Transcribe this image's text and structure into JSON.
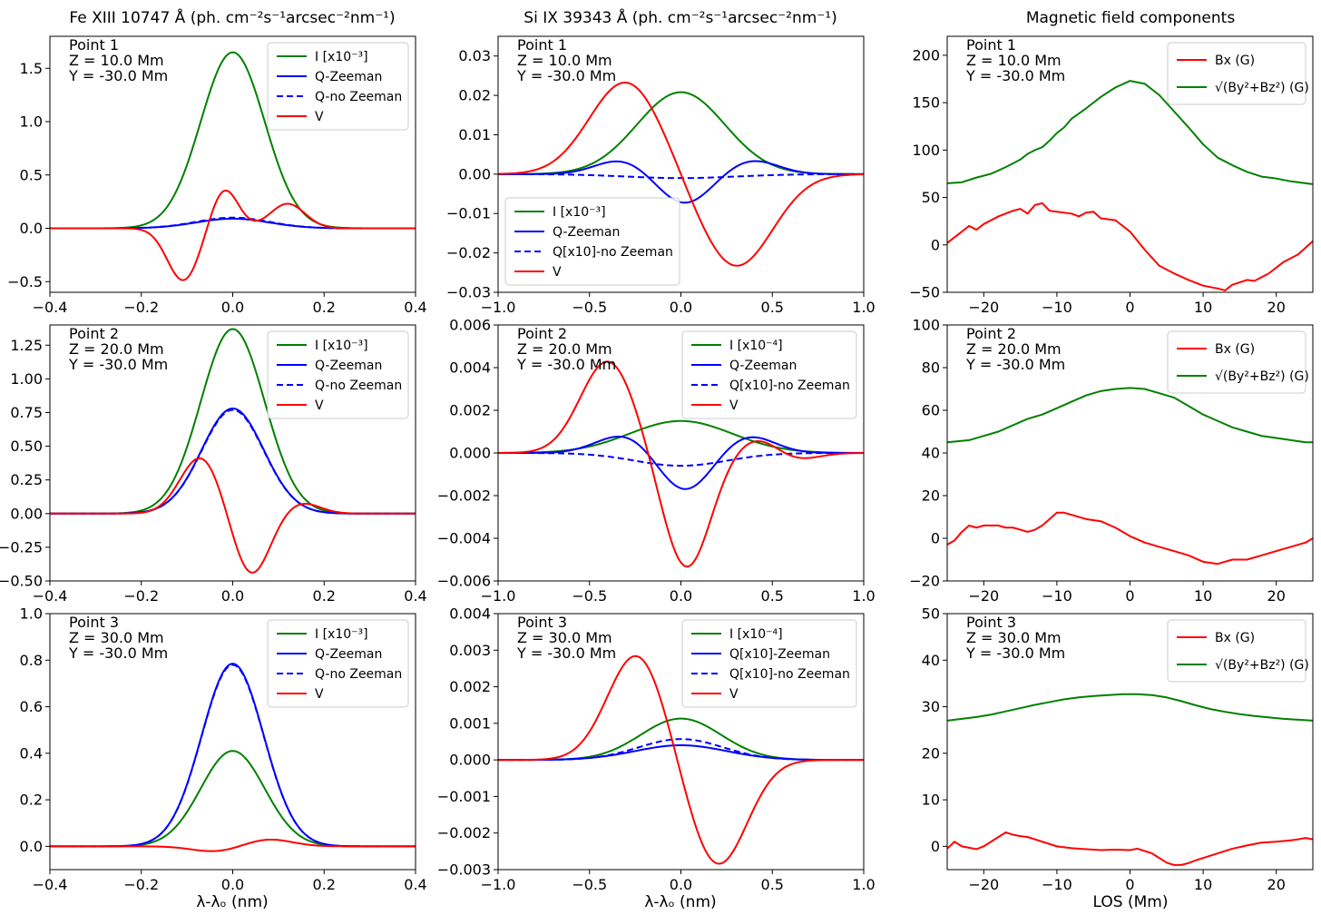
{
  "column_titles": [
    "Fe XIII 10747 Å (ph. cm⁻²s⁻¹arcsec⁻²nm⁻¹)",
    "Si IX 39343 Å (ph. cm⁻²s⁻¹arcsec⁻²nm⁻¹)",
    "Magnetic field components"
  ],
  "colors": {
    "green": "#008000",
    "blue": "#0000ff",
    "red": "#ff0000"
  },
  "chart_data": [
    {
      "id": "fe-p1",
      "type": "line",
      "col": 0,
      "row": 0,
      "xlim": [
        -0.4,
        0.4
      ],
      "ylim": [
        -0.6,
        1.8
      ],
      "xticks": [
        -0.4,
        -0.2,
        0.0,
        0.2,
        0.4
      ],
      "yticks": [
        -0.5,
        0.0,
        0.5,
        1.0,
        1.5
      ],
      "ydigits": 1,
      "info": [
        "Point 1",
        "Z = 10.0 Mm",
        "Y = -30.0 Mm"
      ],
      "legend_pos": "top-right",
      "series": [
        {
          "name": "I [x10⁻³]",
          "color": "green",
          "dash": false,
          "gauss": [
            [
              1.65,
              0,
              0.07
            ]
          ]
        },
        {
          "name": "Q-Zeeman",
          "color": "blue",
          "dash": false,
          "gauss": [
            [
              0.09,
              0,
              0.08
            ]
          ]
        },
        {
          "name": "Q-no Zeeman",
          "color": "blue",
          "dash": true,
          "gauss": [
            [
              0.1,
              0,
              0.08
            ]
          ]
        },
        {
          "name": "V",
          "color": "red",
          "dash": false,
          "gauss": [
            [
              -0.49,
              -0.108,
              0.035
            ],
            [
              0.37,
              -0.018,
              0.03
            ],
            [
              0.23,
              0.12,
              0.038
            ]
          ]
        }
      ]
    },
    {
      "id": "si-p1",
      "type": "line",
      "col": 1,
      "row": 0,
      "xlim": [
        -1.0,
        1.0
      ],
      "ylim": [
        -0.03,
        0.035
      ],
      "xticks": [
        -1.0,
        -0.5,
        0.0,
        0.5,
        1.0
      ],
      "yticks": [
        -0.03,
        -0.02,
        -0.01,
        0.0,
        0.01,
        0.02,
        0.03
      ],
      "ydigits": 2,
      "info": [
        "Point 1",
        "Z = 10.0 Mm",
        "Y = -30.0 Mm"
      ],
      "legend_pos": "bottom-left",
      "series": [
        {
          "name": "I [x10⁻³]",
          "color": "green",
          "dash": false,
          "gauss": [
            [
              0.0208,
              0,
              0.24
            ]
          ]
        },
        {
          "name": "Q-Zeeman",
          "color": "blue",
          "dash": false,
          "gauss": [
            [
              0.0035,
              -0.33,
              0.14
            ],
            [
              -0.0075,
              0.02,
              0.14
            ],
            [
              0.0035,
              0.39,
              0.14
            ]
          ]
        },
        {
          "name": "Q[x10]-no Zeeman",
          "color": "blue",
          "dash": true,
          "gauss": [
            [
              -0.001,
              0,
              0.3
            ]
          ]
        },
        {
          "name": "V",
          "color": "red",
          "dash": false,
          "gauss": [
            [
              0.0235,
              -0.3,
              0.2
            ],
            [
              -0.0235,
              0.3,
              0.2
            ]
          ]
        }
      ]
    },
    {
      "id": "bf-p1",
      "type": "line",
      "col": 2,
      "row": 0,
      "xlim": [
        -25,
        25
      ],
      "ylim": [
        -50,
        220
      ],
      "xticks": [
        -20,
        -10,
        0,
        10,
        20
      ],
      "yticks": [
        -50,
        0,
        50,
        100,
        150,
        200
      ],
      "ydigits": 0,
      "info": [
        "Point 1",
        "Z = 10.0 Mm",
        "Y = -30.0 Mm"
      ],
      "legend_pos": "top-right",
      "series": [
        {
          "name": "Bx (G)",
          "color": "red",
          "dash": false,
          "x": [
            -25,
            -23,
            -22,
            -21,
            -20,
            -18,
            -16,
            -15,
            -14,
            -13,
            -12,
            -11,
            -10,
            -8,
            -7,
            -6,
            -5,
            -4,
            -2,
            0,
            2,
            4,
            6,
            8,
            10,
            12,
            13,
            14,
            16,
            17,
            19,
            21,
            23,
            25
          ],
          "y": [
            2,
            14,
            20,
            16,
            22,
            30,
            36,
            38,
            33,
            42,
            44,
            36,
            35,
            33,
            30,
            34,
            35,
            28,
            26,
            14,
            -5,
            -22,
            -30,
            -37,
            -43,
            -46,
            -48,
            -42,
            -37,
            -38,
            -30,
            -18,
            -10,
            4
          ]
        },
        {
          "name": "√(By²+Bz²) (G)",
          "color": "green",
          "dash": false,
          "x": [
            -25,
            -23,
            -21,
            -19,
            -17,
            -15,
            -14,
            -13,
            -12,
            -11,
            -10,
            -9,
            -8,
            -6,
            -4,
            -2,
            0,
            2,
            4,
            6,
            8,
            10,
            12,
            14,
            16,
            18,
            20,
            22,
            24,
            25
          ],
          "y": [
            65,
            66,
            71,
            75,
            82,
            90,
            96,
            100,
            103,
            110,
            118,
            124,
            133,
            144,
            156,
            166,
            173,
            170,
            158,
            141,
            124,
            106,
            92,
            84,
            77,
            72,
            70,
            67,
            65,
            64
          ]
        }
      ]
    },
    {
      "id": "fe-p2",
      "type": "line",
      "col": 0,
      "row": 1,
      "xlim": [
        -0.4,
        0.4
      ],
      "ylim": [
        -0.5,
        1.4
      ],
      "xticks": [
        -0.4,
        -0.2,
        0.0,
        0.2,
        0.4
      ],
      "yticks": [
        -0.5,
        -0.25,
        0.0,
        0.25,
        0.5,
        0.75,
        1.0,
        1.25
      ],
      "ydigits": 2,
      "info": [
        "Point 2",
        "Z = 20.0 Mm",
        "Y = -30.0 Mm"
      ],
      "legend_pos": "top-right",
      "series": [
        {
          "name": "I [x10⁻³]",
          "color": "green",
          "dash": false,
          "gauss": [
            [
              1.37,
              0,
              0.07
            ]
          ]
        },
        {
          "name": "Q-Zeeman",
          "color": "blue",
          "dash": false,
          "gauss": [
            [
              0.78,
              0,
              0.068
            ]
          ]
        },
        {
          "name": "Q-no Zeeman",
          "color": "blue",
          "dash": true,
          "gauss": [
            [
              0.77,
              0,
              0.068
            ]
          ]
        },
        {
          "name": "V",
          "color": "red",
          "dash": false,
          "gauss": [
            [
              0.42,
              -0.07,
              0.045
            ],
            [
              -0.46,
              0.04,
              0.04
            ],
            [
              0.08,
              0.15,
              0.04
            ]
          ]
        }
      ]
    },
    {
      "id": "si-p2",
      "type": "line",
      "col": 1,
      "row": 1,
      "xlim": [
        -1.0,
        1.0
      ],
      "ylim": [
        -0.006,
        0.006
      ],
      "xticks": [
        -1.0,
        -0.5,
        0.0,
        0.5,
        1.0
      ],
      "yticks": [
        -0.006,
        -0.004,
        -0.002,
        0.0,
        0.002,
        0.004,
        0.006
      ],
      "ydigits": 3,
      "info": [
        "Point 2",
        "Z = 20.0 Mm",
        "Y = -30.0 Mm"
      ],
      "legend_pos": "top-right",
      "series": [
        {
          "name": "I [x10⁻⁴]",
          "color": "green",
          "dash": false,
          "gauss": [
            [
              0.0015,
              0,
              0.28
            ]
          ]
        },
        {
          "name": "Q-Zeeman",
          "color": "blue",
          "dash": false,
          "gauss": [
            [
              0.00085,
              -0.31,
              0.15
            ],
            [
              -0.0018,
              0.02,
              0.14
            ],
            [
              0.0008,
              0.37,
              0.14
            ]
          ]
        },
        {
          "name": "Q[x10]-no Zeeman",
          "color": "blue",
          "dash": true,
          "gauss": [
            [
              -0.0006,
              0,
              0.25
            ]
          ]
        },
        {
          "name": "V",
          "color": "red",
          "dash": false,
          "gauss": [
            [
              0.0043,
              -0.4,
              0.15
            ],
            [
              -0.0054,
              0.03,
              0.13
            ],
            [
              0.0007,
              0.42,
              0.12
            ],
            [
              -0.00035,
              0.62,
              0.12
            ]
          ]
        }
      ]
    },
    {
      "id": "bf-p2",
      "type": "line",
      "col": 2,
      "row": 1,
      "xlim": [
        -25,
        25
      ],
      "ylim": [
        -20,
        100
      ],
      "xticks": [
        -20,
        -10,
        0,
        10,
        20
      ],
      "yticks": [
        -20,
        0,
        20,
        40,
        60,
        80,
        100
      ],
      "ydigits": 0,
      "info": [
        "Point 2",
        "Z = 20.0 Mm",
        "Y = -30.0 Mm"
      ],
      "legend_pos": "top-right",
      "series": [
        {
          "name": "Bx (G)",
          "color": "red",
          "dash": false,
          "x": [
            -25,
            -24,
            -23,
            -22,
            -21,
            -20,
            -19,
            -18,
            -17,
            -16,
            -15,
            -14,
            -13,
            -12,
            -11,
            -10,
            -9,
            -8,
            -6,
            -4,
            -2,
            0,
            2,
            4,
            6,
            8,
            10,
            12,
            13,
            14,
            16,
            18,
            20,
            22,
            24,
            25
          ],
          "y": [
            -3,
            -1,
            3,
            6,
            5,
            6,
            6,
            6,
            5,
            5,
            4,
            3,
            4,
            6,
            9,
            12,
            12,
            11,
            9,
            8,
            5,
            1,
            -2,
            -4,
            -6,
            -8,
            -11,
            -12,
            -11,
            -10,
            -10,
            -8,
            -6,
            -4,
            -2,
            0
          ]
        },
        {
          "name": "√(By²+Bz²) (G)",
          "color": "green",
          "dash": false,
          "x": [
            -25,
            -22,
            -20,
            -18,
            -16,
            -14,
            -12,
            -10,
            -8,
            -6,
            -4,
            -2,
            0,
            2,
            4,
            6,
            8,
            10,
            12,
            14,
            16,
            18,
            20,
            22,
            24,
            25
          ],
          "y": [
            45,
            46,
            48,
            50,
            53,
            56,
            58,
            61,
            64,
            67,
            69,
            70,
            70.5,
            70,
            68,
            66,
            62,
            58,
            55,
            52,
            50,
            48,
            47,
            46,
            45,
            45
          ]
        }
      ]
    },
    {
      "id": "fe-p3",
      "type": "line",
      "col": 0,
      "row": 2,
      "xlim": [
        -0.4,
        0.4
      ],
      "ylim": [
        -0.1,
        1.0
      ],
      "xticks": [
        -0.4,
        -0.2,
        0.0,
        0.2,
        0.4
      ],
      "yticks": [
        0.0,
        0.2,
        0.4,
        0.6,
        0.8,
        1.0
      ],
      "ydigits": 1,
      "info": [
        "Point 3",
        "Z = 30.0 Mm",
        "Y = -30.0 Mm"
      ],
      "legend_pos": "top-right",
      "series": [
        {
          "name": "I [x10⁻³]",
          "color": "green",
          "dash": false,
          "gauss": [
            [
              0.41,
              0,
              0.07
            ]
          ]
        },
        {
          "name": "Q-Zeeman",
          "color": "blue",
          "dash": false,
          "gauss": [
            [
              0.785,
              0,
              0.068
            ]
          ]
        },
        {
          "name": "Q-no Zeeman",
          "color": "blue",
          "dash": true,
          "gauss": [
            [
              0.78,
              0,
              0.068
            ]
          ]
        },
        {
          "name": "V",
          "color": "red",
          "dash": false,
          "gauss": [
            [
              -0.022,
              -0.04,
              0.05
            ],
            [
              0.03,
              0.08,
              0.05
            ]
          ]
        }
      ]
    },
    {
      "id": "si-p3",
      "type": "line",
      "col": 1,
      "row": 2,
      "xlim": [
        -1.0,
        1.0
      ],
      "ylim": [
        -0.003,
        0.004
      ],
      "xticks": [
        -1.0,
        -0.5,
        0.0,
        0.5,
        1.0
      ],
      "yticks": [
        -0.003,
        -0.002,
        -0.001,
        0.0,
        0.001,
        0.002,
        0.003,
        0.004
      ],
      "ydigits": 3,
      "info": [
        "Point 3",
        "Z = 30.0 Mm",
        "Y = -30.0 Mm"
      ],
      "legend_pos": "top-right",
      "series": [
        {
          "name": "I [x10⁻⁴]",
          "color": "green",
          "dash": false,
          "gauss": [
            [
              0.00113,
              0,
              0.22
            ]
          ]
        },
        {
          "name": "Q[x10]-Zeeman",
          "color": "blue",
          "dash": false,
          "gauss": [
            [
              0.0004,
              0,
              0.25
            ]
          ]
        },
        {
          "name": "Q[x10]-no Zeeman",
          "color": "blue",
          "dash": true,
          "gauss": [
            [
              0.00057,
              0,
              0.23
            ]
          ]
        },
        {
          "name": "V",
          "color": "red",
          "dash": false,
          "gauss": [
            [
              0.0029,
              -0.24,
              0.16
            ],
            [
              -0.0029,
              0.2,
              0.16
            ]
          ]
        }
      ]
    },
    {
      "id": "bf-p3",
      "type": "line",
      "col": 2,
      "row": 2,
      "xlim": [
        -25,
        25
      ],
      "ylim": [
        -5,
        50
      ],
      "xticks": [
        -20,
        -10,
        0,
        10,
        20
      ],
      "yticks": [
        0,
        10,
        20,
        30,
        40,
        50
      ],
      "ydigits": 0,
      "info": [
        "Point 3",
        "Z = 30.0 Mm",
        "Y = -30.0 Mm"
      ],
      "legend_pos": "top-right",
      "series": [
        {
          "name": "Bx (G)",
          "color": "red",
          "dash": false,
          "x": [
            -25,
            -24,
            -23,
            -22,
            -21,
            -20,
            -19,
            -18,
            -17,
            -16,
            -15,
            -14,
            -12,
            -10,
            -8,
            -6,
            -4,
            -2,
            0,
            1,
            2,
            3,
            4,
            5,
            6,
            7,
            8,
            9,
            10,
            12,
            14,
            16,
            18,
            20,
            22,
            23,
            24,
            25
          ],
          "y": [
            -0.5,
            1,
            0,
            -0.3,
            -0.6,
            0,
            1,
            2,
            3,
            2.5,
            2.2,
            2,
            1,
            0,
            -0.4,
            -0.6,
            -0.8,
            -0.7,
            -0.8,
            -0.5,
            -1,
            -1.5,
            -2.5,
            -3.5,
            -4,
            -4,
            -3.6,
            -3,
            -2.5,
            -1.5,
            -0.5,
            0.2,
            0.8,
            1,
            1.3,
            1.5,
            1.8,
            1.5
          ]
        },
        {
          "name": "√(By²+Bz²) (G)",
          "color": "green",
          "dash": false,
          "x": [
            -25,
            -23,
            -21,
            -19,
            -17,
            -15,
            -13,
            -11,
            -9,
            -7,
            -5,
            -3,
            -1,
            1,
            3,
            5,
            7,
            9,
            11,
            13,
            15,
            17,
            19,
            21,
            23,
            25
          ],
          "y": [
            27,
            27.4,
            27.8,
            28.3,
            29,
            29.7,
            30.4,
            31,
            31.6,
            32,
            32.3,
            32.5,
            32.7,
            32.7,
            32.5,
            32,
            31.2,
            30.3,
            29.5,
            28.9,
            28.4,
            28,
            27.7,
            27.4,
            27.2,
            27
          ]
        }
      ]
    }
  ],
  "xlabels": [
    "λ-λₒ (nm)",
    "λ-λₒ (nm)",
    "LOS (Mm)"
  ]
}
